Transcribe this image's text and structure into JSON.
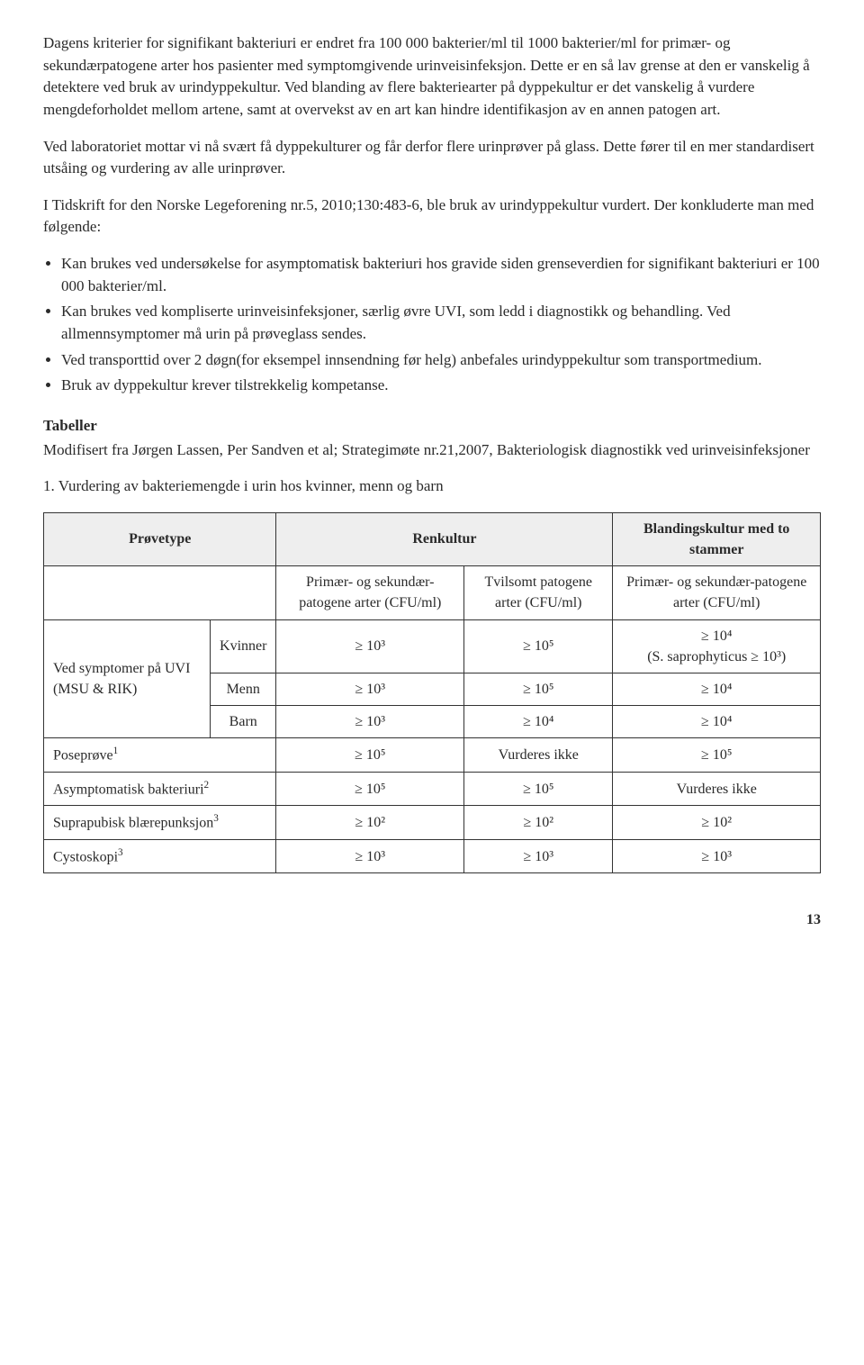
{
  "paragraphs": {
    "p1": "Dagens kriterier for signifikant bakteriuri er endret fra 100 000 bakterier/ml til 1000 bakterier/ml for primær- og sekundærpatogene arter hos pasienter med symptomgivende urinveisinfeksjon. Dette er en så lav grense at den er vanskelig å detektere ved bruk av urindyppekultur. Ved blanding av flere bakteriearter på dyppekultur er det vanskelig å vurdere mengdeforholdet mellom artene, samt at overvekst av en art kan hindre identifikasjon av en annen patogen art.",
    "p2": "Ved laboratoriet mottar vi nå svært få dyppekulturer og får derfor flere urinprøver på glass. Dette fører til en mer standardisert utsåing og vurdering av alle urinprøver.",
    "p3": "I Tidskrift for den Norske Legeforening nr.5, 2010;130:483-6, ble bruk av urindyppekultur vurdert. Der konkluderte man med følgende:",
    "bullets": [
      "Kan brukes ved undersøkelse for asymptomatisk bakteriuri hos gravide siden grenseverdien for signifikant bakteriuri er 100 000 bakterier/ml.",
      "Kan brukes ved kompliserte urinveisinfeksjoner, særlig øvre UVI, som ledd i diagnostikk og behandling. Ved allmennsymptomer må urin på prøveglass sendes.",
      "Ved transporttid over 2 døgn(for eksempel innsendning før helg) anbefales urindyppekultur som transportmedium.",
      "Bruk av dyppekultur krever tilstrekkelig kompetanse."
    ],
    "tabeller_heading": "Tabeller",
    "tabeller_text": "Modifisert fra Jørgen Lassen, Per Sandven et al; Strategimøte nr.21,2007, Bakteriologisk diagnostikk ved urinveisinfeksjoner",
    "table_caption": "1. Vurdering av bakteriemengde i urin hos kvinner, menn og barn"
  },
  "table": {
    "headers": [
      "Prøvetype",
      "Renkultur",
      "Blandingskultur med to stammer"
    ],
    "subheaders": [
      "Primær- og sekundær-patogene arter (CFU/ml)",
      "Tvilsomt patogene arter (CFU/ml)",
      "Primær- og sekundær-patogene arter (CFU/ml)"
    ],
    "uvi_label": "Ved symptomer på UVI (MSU & RIK)",
    "uvi_rows": [
      {
        "cat": "Kvinner",
        "c1": "≥ 10³",
        "c2": "≥ 10⁵",
        "c3_a": "≥ 10⁴",
        "c3_b": "(S. saprophyticus  ≥ 10³)"
      },
      {
        "cat": "Menn",
        "c1": "≥ 10³",
        "c2": "≥ 10⁵",
        "c3": "≥ 10⁴"
      },
      {
        "cat": "Barn",
        "c1": "≥ 10³",
        "c2": "≥ 10⁴",
        "c3": "≥ 10⁴"
      }
    ],
    "other_rows": [
      {
        "label": "Poseprøve",
        "sup": "1",
        "c1": "≥ 10⁵",
        "c2": "Vurderes ikke",
        "c3": "≥ 10⁵"
      },
      {
        "label": "Asymptomatisk bakteriuri",
        "sup": "2",
        "c1": "≥ 10⁵",
        "c2": "≥ 10⁵",
        "c3": "Vurderes ikke"
      },
      {
        "label": "Suprapubisk blærepunksjon",
        "sup": "3",
        "c1": "≥ 10²",
        "c2": "≥ 10²",
        "c3": "≥ 10²"
      },
      {
        "label": "Cystoskopi",
        "sup": "3",
        "c1": "≥ 10³",
        "c2": "≥ 10³",
        "c3": "≥ 10³"
      }
    ]
  },
  "page_number": "13"
}
